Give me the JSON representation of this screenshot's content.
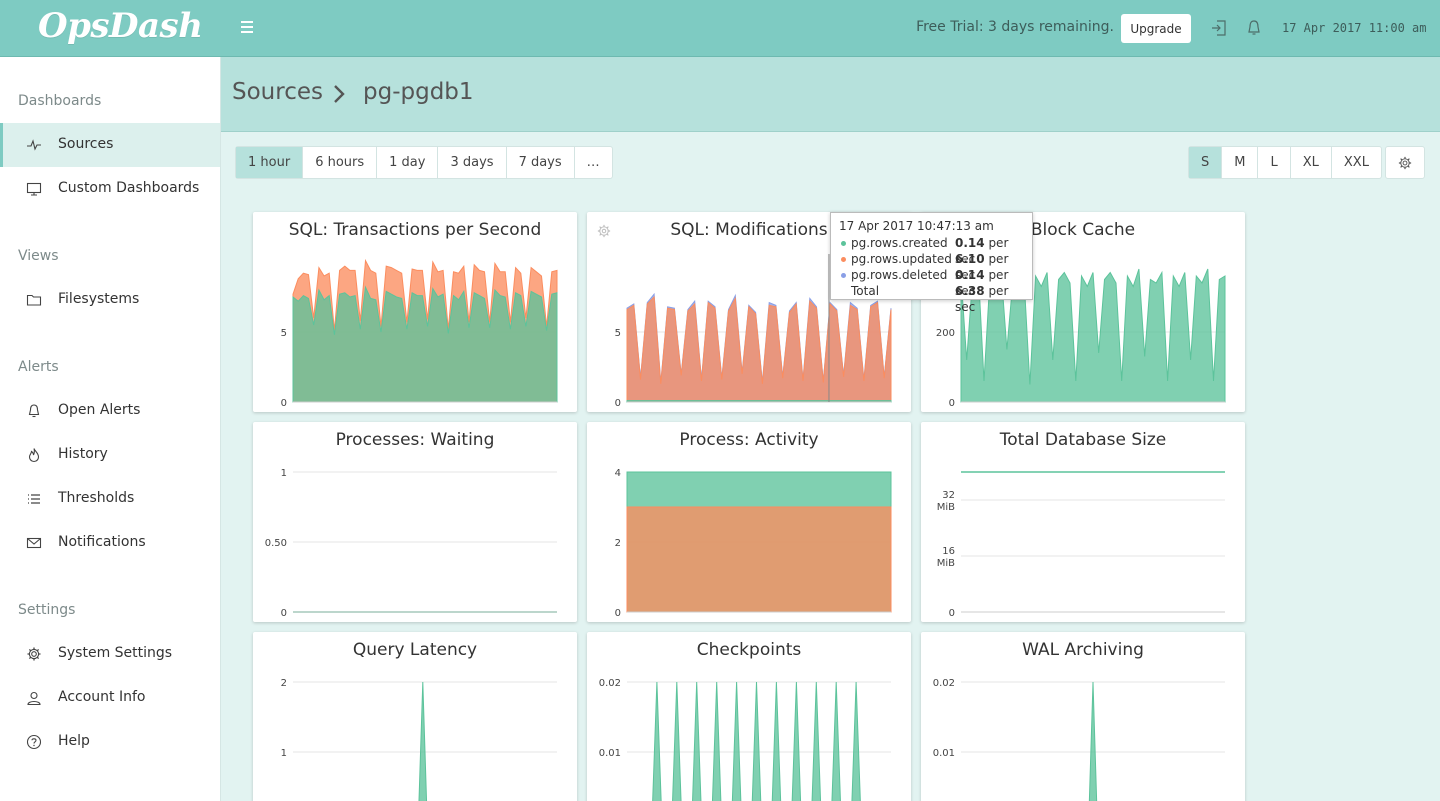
{
  "header": {
    "logo": "OpsDash",
    "trial_text": "Free Trial: 3 days remaining.",
    "upgrade_label": "Upgrade",
    "datetime": "17 Apr 2017 11:00 am"
  },
  "sidebar": {
    "sections": [
      {
        "title": "Dashboards",
        "items": [
          {
            "label": "Sources",
            "icon": "pulse-icon",
            "active": true
          },
          {
            "label": "Custom Dashboards",
            "icon": "monitor-icon"
          }
        ]
      },
      {
        "title": "Views",
        "items": [
          {
            "label": "Filesystems",
            "icon": "folder-icon"
          }
        ]
      },
      {
        "title": "Alerts",
        "items": [
          {
            "label": "Open Alerts",
            "icon": "bell-icon"
          },
          {
            "label": "History",
            "icon": "flame-icon"
          },
          {
            "label": "Thresholds",
            "icon": "list-icon"
          },
          {
            "label": "Notifications",
            "icon": "envelope-icon"
          }
        ]
      },
      {
        "title": "Settings",
        "items": [
          {
            "label": "System Settings",
            "icon": "gear-icon"
          },
          {
            "label": "Account Info",
            "icon": "user-icon"
          },
          {
            "label": "Help",
            "icon": "help-icon"
          }
        ]
      }
    ]
  },
  "breadcrumb": {
    "root": "Sources",
    "current": "pg-pgdb1"
  },
  "toolbar": {
    "ranges": [
      "1 hour",
      "6 hours",
      "1 day",
      "3 days",
      "7 days",
      "…"
    ],
    "active_range": "1 hour",
    "sizes": [
      "S",
      "M",
      "L",
      "XL",
      "XXL"
    ],
    "active_size": "S"
  },
  "colors": {
    "green": "#5cc39b",
    "orange": "#fb8d5f",
    "blue": "#8a9fe6",
    "grid": "#e4e4e4"
  },
  "chart_data": [
    {
      "title": "SQL: Transactions per Second",
      "type": "area",
      "ylim": [
        0,
        10
      ],
      "yticks": [
        "0",
        "5"
      ],
      "series": [
        {
          "name": "",
          "color": "green",
          "values": [
            7.5,
            7.2,
            7.6,
            7.4,
            5.5,
            8.0,
            7.3,
            7.6,
            4.8,
            7.7,
            7.8,
            7.5,
            7.6,
            5.2,
            8.2,
            7.4,
            7.3,
            5.0,
            7.9,
            7.7,
            7.5,
            7.4,
            5.2,
            7.8,
            7.6,
            7.6,
            5.4,
            8.1,
            7.5,
            7.7,
            4.9,
            7.6,
            7.3,
            7.9,
            5.3,
            7.8,
            7.6,
            7.4,
            5.3,
            8.0,
            7.6,
            7.5,
            5.2,
            7.8,
            7.6,
            5.4,
            7.9,
            7.7,
            7.5,
            5.1,
            7.7,
            7.8
          ]
        },
        {
          "name": "",
          "color": "orange",
          "values": [
            0.2,
            1.6,
            1.6,
            1.7,
            0.5,
            1.6,
            1.7,
            1.6,
            0.3,
            1.7,
            1.9,
            1.9,
            1.8,
            0.6,
            1.9,
            2.0,
            1.9,
            0.4,
            1.8,
            1.9,
            1.9,
            1.8,
            0.5,
            1.7,
            1.8,
            1.8,
            0.5,
            1.9,
            1.8,
            1.7,
            0.3,
            1.7,
            1.9,
            1.8,
            0.4,
            2.0,
            1.8,
            1.9,
            0.4,
            1.9,
            1.7,
            1.8,
            0.5,
            1.8,
            1.6,
            0.6,
            1.7,
            1.6,
            1.5,
            0.3,
            1.6,
            1.6
          ]
        }
      ]
    },
    {
      "title": "SQL: Modifications",
      "type": "area",
      "ylim": [
        0,
        10
      ],
      "yticks": [
        "0",
        "5"
      ],
      "series": [
        {
          "name": "pg.rows.created",
          "color": "green",
          "values": [
            0.1,
            0.1,
            0.1,
            0.1,
            0.1,
            0.1,
            0.1,
            0.1,
            0.1,
            0.1,
            0.1,
            0.1,
            0.1,
            0.1,
            0.1,
            0.1,
            0.1,
            0.1,
            0.1,
            0.1,
            0.1,
            0.1,
            0.1,
            0.1,
            0.1,
            0.1,
            0.1,
            0.1,
            0.1,
            0.1,
            0.1,
            0.1,
            0.1,
            0.1,
            0.1,
            0.1,
            0.1,
            0.1,
            0.1,
            0.1
          ]
        },
        {
          "name": "pg.rows.updated",
          "color": "orange",
          "values": [
            6.5,
            6.8,
            1.5,
            6.9,
            7.4,
            1.2,
            6.6,
            6.5,
            1.8,
            6.4,
            6.9,
            1.4,
            7.0,
            6.6,
            1.5,
            6.4,
            7.3,
            1.9,
            6.7,
            6.2,
            1.2,
            6.8,
            6.7,
            1.6,
            6.3,
            6.9,
            1.4,
            7.1,
            6.6,
            1.3,
            6.9,
            6.4,
            1.7,
            6.8,
            6.5,
            1.4,
            6.7,
            7.0,
            1.6,
            6.5
          ]
        },
        {
          "name": "pg.rows.deleted",
          "color": "blue",
          "values": [
            0.1,
            0.1,
            0.1,
            0.1,
            0.2,
            0.1,
            0.1,
            0.1,
            0.1,
            0.1,
            0.2,
            0.1,
            0.1,
            0.1,
            0.1,
            0.1,
            0.2,
            0.1,
            0.1,
            0.1,
            0.1,
            0.2,
            0.1,
            0.1,
            0.1,
            0.1,
            0.1,
            0.2,
            0.1,
            0.1,
            0.1,
            0.1,
            0.1,
            0.2,
            0.1,
            0.1,
            0.1,
            0.1,
            0.1,
            0.1
          ]
        }
      ]
    },
    {
      "title": "Block Cache",
      "type": "area",
      "ylim": [
        0,
        400
      ],
      "yticks": [
        "0",
        "200"
      ],
      "series": [
        {
          "name": "",
          "color": "green",
          "values": [
            360,
            120,
            350,
            380,
            60,
            340,
            360,
            370,
            150,
            340,
            380,
            350,
            50,
            360,
            330,
            370,
            120,
            350,
            370,
            340,
            60,
            360,
            330,
            370,
            140,
            350,
            370,
            340,
            60,
            360,
            330,
            380,
            130,
            350,
            340,
            370,
            60,
            360,
            330,
            370,
            120,
            360,
            340,
            380,
            60,
            350,
            360
          ]
        }
      ]
    },
    {
      "title": "Processes: Waiting",
      "type": "line",
      "ylim": [
        0,
        1
      ],
      "yticks": [
        "0",
        "0.50",
        "1"
      ],
      "series": [
        {
          "name": "",
          "color": "green",
          "values": [
            0,
            0,
            0,
            0
          ]
        }
      ]
    },
    {
      "title": "Process: Activity",
      "type": "area",
      "ylim": [
        0,
        4
      ],
      "yticks": [
        "0",
        "2",
        "4"
      ],
      "series": [
        {
          "name": "",
          "color": "orange",
          "values": [
            3,
            3,
            3,
            3
          ]
        },
        {
          "name": "",
          "color": "green",
          "values": [
            1,
            1,
            1,
            1
          ]
        }
      ]
    },
    {
      "title": "Total Database Size",
      "type": "line",
      "ylim": [
        0,
        40
      ],
      "yticks": [
        "0",
        "16",
        "32"
      ],
      "yunit": "MiB",
      "series": [
        {
          "name": "",
          "color": "green",
          "values": [
            40,
            40,
            40,
            40
          ]
        }
      ]
    },
    {
      "title": "Query Latency",
      "type": "area",
      "ylim": [
        0,
        2
      ],
      "yticks": [
        "1",
        "2"
      ],
      "series": [
        {
          "name": "",
          "color": "green",
          "values": [
            0,
            0,
            0,
            0,
            0,
            0,
            0,
            0,
            0,
            0,
            0,
            0,
            0,
            0,
            0,
            0,
            0,
            0,
            0,
            0,
            0,
            0,
            0,
            0,
            0,
            0,
            0,
            0,
            0,
            2,
            0,
            0,
            0,
            0,
            0,
            0,
            0,
            0,
            0,
            0,
            0,
            0,
            0,
            0,
            0,
            0,
            0,
            0,
            0,
            0,
            0,
            0,
            0,
            0,
            0,
            0,
            0,
            0,
            0,
            0
          ]
        }
      ]
    },
    {
      "title": "Checkpoints",
      "type": "area",
      "ylim": [
        0,
        0.02
      ],
      "yticks": [
        "0.01",
        "0.02"
      ],
      "series": [
        {
          "name": "",
          "color": "green",
          "values": [
            0,
            0,
            0,
            0,
            0,
            0,
            0.02,
            0,
            0,
            0,
            0.02,
            0,
            0,
            0,
            0.02,
            0,
            0,
            0,
            0.02,
            0,
            0,
            0,
            0.02,
            0,
            0,
            0,
            0.02,
            0,
            0,
            0,
            0.02,
            0,
            0,
            0,
            0.02,
            0,
            0,
            0,
            0.02,
            0,
            0,
            0,
            0.02,
            0,
            0,
            0,
            0.02,
            0,
            0,
            0,
            0,
            0,
            0,
            0
          ]
        }
      ]
    },
    {
      "title": "WAL Archiving",
      "type": "area",
      "ylim": [
        0,
        0.02
      ],
      "yticks": [
        "0.01",
        "0.02"
      ],
      "series": [
        {
          "name": "",
          "color": "green",
          "values": [
            0,
            0,
            0,
            0,
            0,
            0,
            0,
            0,
            0,
            0,
            0,
            0,
            0,
            0,
            0,
            0,
            0,
            0,
            0,
            0,
            0,
            0,
            0,
            0,
            0,
            0,
            0,
            0,
            0,
            0,
            0,
            0.02,
            0,
            0,
            0,
            0,
            0,
            0,
            0,
            0,
            0,
            0,
            0,
            0,
            0,
            0,
            0,
            0,
            0,
            0,
            0,
            0,
            0,
            0,
            0,
            0,
            0,
            0,
            0,
            0,
            0,
            0,
            0
          ]
        }
      ]
    }
  ],
  "tooltip": {
    "time": "17 Apr 2017 10:47:13 am",
    "rows": [
      {
        "name": "pg.rows.created",
        "value": "0.14",
        "unit": "per sec",
        "color": "green"
      },
      {
        "name": "pg.rows.updated",
        "value": "6.10",
        "unit": "per sec",
        "color": "orange"
      },
      {
        "name": "pg.rows.deleted",
        "value": "0.14",
        "unit": "per sec",
        "color": "blue"
      },
      {
        "name": "Total",
        "value": "6.38",
        "unit": "per sec",
        "color": ""
      }
    ]
  }
}
